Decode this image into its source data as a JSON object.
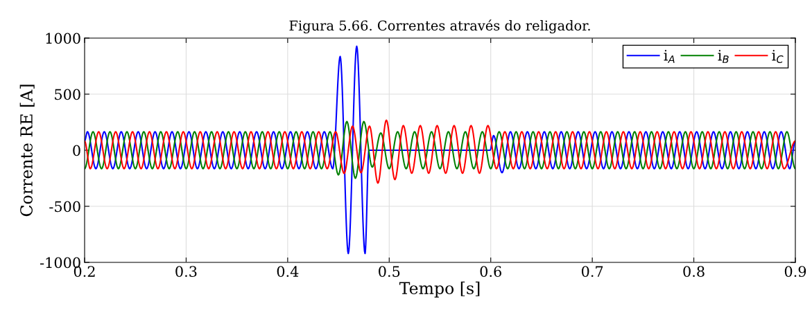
{
  "chart_data": {
    "type": "line",
    "title": "Figura 5.66. Correntes através do religador.",
    "xlabel": "Tempo [s]",
    "ylabel": "Corrente RE [A]",
    "xlim": [
      0.2,
      0.9
    ],
    "xticks": [
      0.2,
      0.3,
      0.4,
      0.5,
      0.6,
      0.7,
      0.8,
      0.9
    ],
    "ylim": [
      -1000,
      1000
    ],
    "yticks": [
      -1000,
      -500,
      0,
      500,
      1000
    ],
    "grid": true,
    "legend": "top right",
    "marker": "none",
    "line_style": "solid",
    "series": [
      {
        "name": "i$_{A}$",
        "color": "#0000ff",
        "x": [
          0.2,
          0.2028,
          0.2111,
          0.2194,
          0.2278,
          0.2361,
          0.2444,
          0.2528,
          0.2611,
          0.2694,
          0.2778,
          0.2861,
          0.2944,
          0.3028,
          0.3111,
          0.3194,
          0.3278,
          0.3361,
          0.3444,
          0.3528,
          0.3611,
          0.3694,
          0.3778,
          0.3861,
          0.3944,
          0.4028,
          0.4111,
          0.4194,
          0.4278,
          0.4361,
          0.4444,
          0.4517,
          0.4597,
          0.468,
          0.4762,
          0.48,
          0.5993,
          0.6028,
          0.6111,
          0.6194,
          0.6278,
          0.6361,
          0.6444,
          0.6528,
          0.6611,
          0.6694,
          0.6778,
          0.6861,
          0.6944,
          0.7028,
          0.7111,
          0.7194,
          0.7278,
          0.7361,
          0.7444,
          0.7528,
          0.7611,
          0.7694,
          0.7778,
          0.7861,
          0.7944,
          0.8028,
          0.8111,
          0.8194,
          0.8278,
          0.8361,
          0.8444,
          0.8528,
          0.8611,
          0.8694,
          0.8778,
          0.8861,
          0.8944,
          0.9
        ],
        "values": [
          82,
          165,
          -165,
          165,
          -165,
          165,
          -165,
          165,
          -165,
          165,
          -165,
          165,
          -165,
          165,
          -165,
          165,
          -165,
          165,
          -165,
          165,
          -165,
          165,
          -165,
          165,
          -165,
          165,
          -165,
          165,
          -165,
          165,
          -165,
          836,
          -921,
          927,
          -921,
          0,
          0,
          130,
          -200,
          165,
          -165,
          165,
          -165,
          165,
          -165,
          165,
          -165,
          165,
          -165,
          165,
          -165,
          165,
          -165,
          165,
          -165,
          165,
          -165,
          165,
          -165,
          165,
          -165,
          165,
          -165,
          165,
          -165,
          165,
          -165,
          165,
          -165,
          165,
          -165,
          165,
          -165,
          82
        ]
      },
      {
        "name": "i$_{B}$",
        "color": "#008000",
        "x": [
          0.2,
          0.2083,
          0.2167,
          0.225,
          0.2333,
          0.2417,
          0.25,
          0.2583,
          0.2667,
          0.275,
          0.2833,
          0.2917,
          0.3,
          0.3083,
          0.3167,
          0.325,
          0.3333,
          0.3417,
          0.35,
          0.3583,
          0.3667,
          0.375,
          0.3833,
          0.3917,
          0.4,
          0.4083,
          0.4167,
          0.425,
          0.4333,
          0.4417,
          0.45,
          0.4583,
          0.4667,
          0.475,
          0.4833,
          0.4917,
          0.5,
          0.5083,
          0.5167,
          0.525,
          0.5333,
          0.5417,
          0.55,
          0.5583,
          0.5667,
          0.575,
          0.5833,
          0.5917,
          0.6,
          0.6083,
          0.6167,
          0.625,
          0.6333,
          0.6417,
          0.65,
          0.6583,
          0.6667,
          0.675,
          0.6833,
          0.6917,
          0.7,
          0.7083,
          0.7167,
          0.725,
          0.7333,
          0.7417,
          0.75,
          0.7583,
          0.7667,
          0.775,
          0.7833,
          0.7917,
          0.8,
          0.8083,
          0.8167,
          0.825,
          0.8333,
          0.8417,
          0.85,
          0.8583,
          0.8667,
          0.875,
          0.8833,
          0.8917,
          0.9
        ],
        "values": [
          -165,
          165,
          -165,
          165,
          -165,
          165,
          -165,
          165,
          -165,
          165,
          -165,
          165,
          -165,
          165,
          -165,
          165,
          -165,
          165,
          -165,
          165,
          -165,
          165,
          -165,
          165,
          -165,
          165,
          -165,
          165,
          -165,
          165,
          -220,
          256,
          -250,
          256,
          -150,
          154,
          -165,
          165,
          -165,
          165,
          -165,
          165,
          -165,
          165,
          -165,
          165,
          -165,
          165,
          -165,
          165,
          -165,
          165,
          -165,
          165,
          -165,
          165,
          -165,
          165,
          -165,
          165,
          -165,
          165,
          -165,
          165,
          -165,
          165,
          -165,
          165,
          -165,
          165,
          -165,
          165,
          -165,
          165,
          -165,
          165,
          -165,
          165,
          -165,
          165,
          -165,
          165,
          -165,
          165,
          -165
        ]
      },
      {
        "name": "i$_{C}$",
        "color": "#ff0000",
        "x": [
          0.2,
          0.2056,
          0.2139,
          0.2222,
          0.2306,
          0.2389,
          0.2472,
          0.2556,
          0.2639,
          0.2722,
          0.2806,
          0.2889,
          0.2972,
          0.3056,
          0.3139,
          0.3222,
          0.3306,
          0.3389,
          0.3472,
          0.3556,
          0.3639,
          0.3722,
          0.3806,
          0.3889,
          0.3972,
          0.4056,
          0.4139,
          0.4222,
          0.4306,
          0.4389,
          0.4472,
          0.4556,
          0.4639,
          0.4722,
          0.4806,
          0.4889,
          0.4972,
          0.5056,
          0.5139,
          0.5222,
          0.5306,
          0.5389,
          0.5472,
          0.5556,
          0.5639,
          0.5722,
          0.5806,
          0.5889,
          0.5972,
          0.6056,
          0.6139,
          0.6222,
          0.6306,
          0.6389,
          0.6472,
          0.6556,
          0.6639,
          0.6722,
          0.6806,
          0.6889,
          0.6972,
          0.7056,
          0.7139,
          0.7222,
          0.7306,
          0.7389,
          0.7472,
          0.7556,
          0.7639,
          0.7722,
          0.7806,
          0.7889,
          0.7972,
          0.8056,
          0.8139,
          0.8222,
          0.8306,
          0.8389,
          0.8472,
          0.8556,
          0.8639,
          0.8722,
          0.8806,
          0.8889,
          0.9
        ],
        "values": [
          82,
          -165,
          165,
          -165,
          165,
          -165,
          165,
          -165,
          165,
          -165,
          165,
          -165,
          165,
          -165,
          165,
          -165,
          165,
          -165,
          165,
          -165,
          165,
          -165,
          165,
          -165,
          165,
          -165,
          165,
          -165,
          165,
          -165,
          165,
          -207,
          215,
          -200,
          215,
          -293,
          268,
          -262,
          220,
          -205,
          220,
          -205,
          220,
          -205,
          220,
          -205,
          220,
          -205,
          220,
          -165,
          165,
          -165,
          165,
          -165,
          165,
          -165,
          165,
          -165,
          165,
          -165,
          165,
          -165,
          165,
          -165,
          165,
          -165,
          165,
          -165,
          165,
          -165,
          165,
          -165,
          165,
          -165,
          165,
          -165,
          165,
          -165,
          165,
          -165,
          165,
          -165,
          165,
          -165,
          82
        ]
      }
    ]
  }
}
